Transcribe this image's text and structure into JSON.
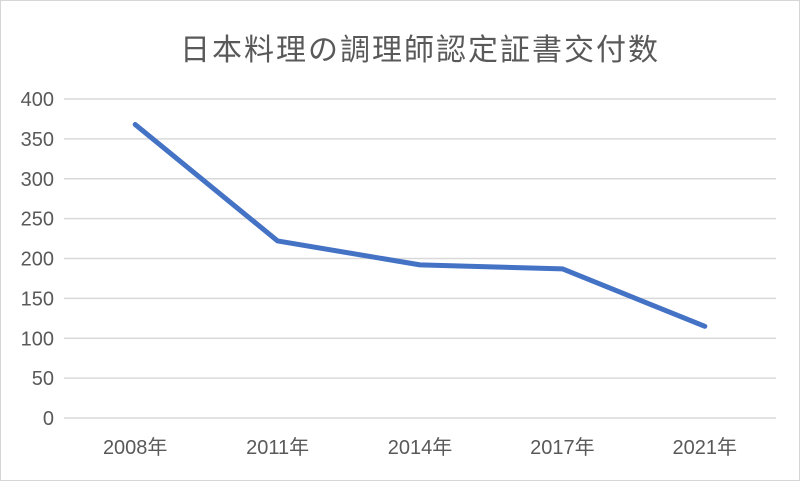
{
  "chart": {
    "title": "日本料理の調理師認定証書交付数"
  },
  "chart_data": {
    "type": "line",
    "title": "日本料理の調理師認定証書交付数",
    "categories": [
      "2008年",
      "2011年",
      "2014年",
      "2017年",
      "2021年"
    ],
    "series": [
      {
        "name": "調理師認定証書交付数",
        "values": [
          368,
          222,
          192,
          187,
          115
        ]
      }
    ],
    "xlabel": "",
    "ylabel": "",
    "ylim": [
      0,
      400
    ],
    "ytick_step": 50,
    "ytick_labels": [
      "0",
      "50",
      "100",
      "150",
      "200",
      "250",
      "300",
      "350",
      "400"
    ],
    "grid": true,
    "legend": "none",
    "line_color": "#4472C4",
    "gridline_color": "#D9D9D9",
    "text_color": "#595959",
    "background_color": "#FFFFFF",
    "line_width": 5
  }
}
